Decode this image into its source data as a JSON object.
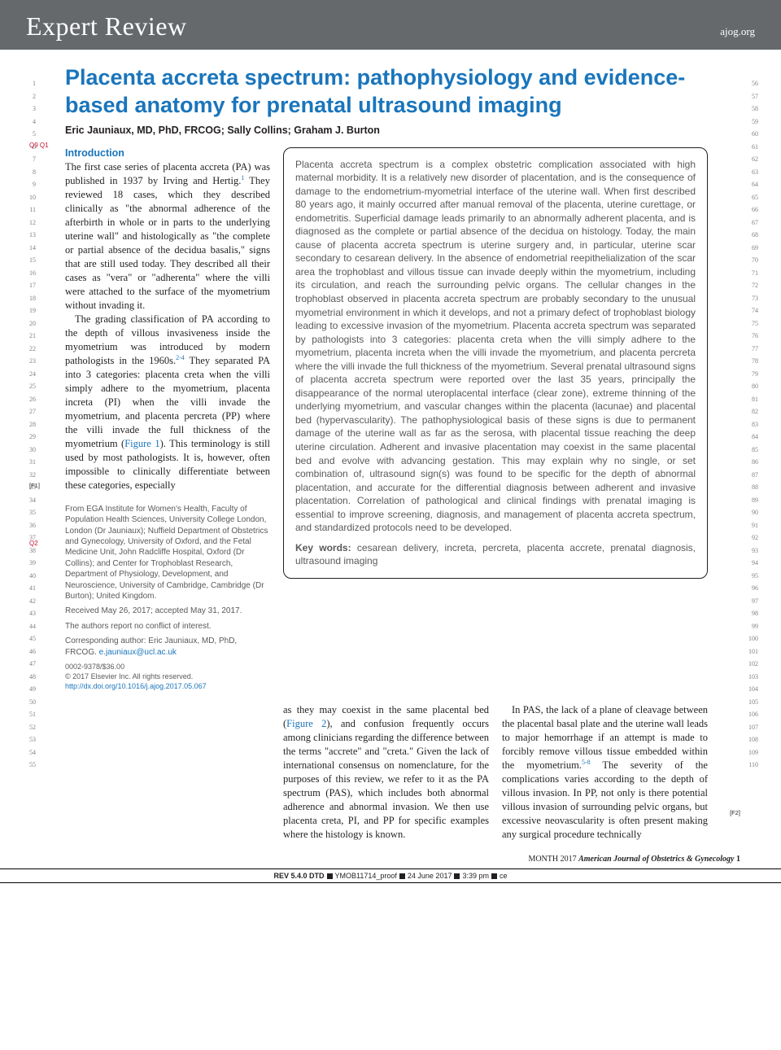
{
  "header": {
    "section": "Expert Review",
    "site": "ajog.org"
  },
  "title": "Placenta accreta spectrum: pathophysiology and evidence-based anatomy for prenatal ultrasound imaging",
  "queryMarks": "Q9 Q1",
  "authors": "Eric Jauniaux, MD, PhD, FRCOG; Sally Collins; Graham J. Burton",
  "intro": {
    "heading": "Introduction",
    "p1a": "The first case series of placenta accreta (PA) was published in 1937 by Irving and Hertig.",
    "p1sup": "1",
    "p1b": " They reviewed 18 cases, which they described clinically as \"the abnormal adherence of the afterbirth in whole or in parts to the underlying uterine wall\" and histologically as \"the complete or partial absence of the decidua basalis,\" signs that are still used today. They described all their cases as \"vera\" or \"adherenta\" where the villi were attached to the surface of the myometrium without invading it.",
    "p2a": "The grading classification of PA according to the depth of villous invasiveness inside the myometrium was introduced by modern pathologists in the 1960s.",
    "p2sup": "2-4",
    "p2b": " They separated PA into 3 categories: placenta creta when the villi simply adhere to the myometrium, placenta increta (PI) when the villi invade the myometrium, and placenta percreta (PP) where the villi invade the full thickness of the myometrium (",
    "p2fig": "Figure 1",
    "p2c": "). This terminology is still used by most pathologists. It is, however, often impossible to clinically differentiate between these categories, especially"
  },
  "markers": {
    "f1": "[F1]",
    "q2": "Q2",
    "f2": "[F2]"
  },
  "affil": {
    "from": "From EGA Institute for Women's Health, Faculty of Population Health Sciences, University College London, London (Dr Jauniaux); Nuffield Department of Obstetrics and Gynecology, University of Oxford, and the Fetal Medicine Unit, John Radcliffe Hospital, Oxford (Dr Collins); and Center for Trophoblast Research, Department of Physiology, Development, and Neuroscience, University of Cambridge, Cambridge (Dr Burton); United Kingdom.",
    "received": "Received May 26, 2017; accepted May 31, 2017.",
    "conflict": "The authors report no conflict of interest.",
    "corresponding": "Corresponding author: Eric Jauniaux, MD, PhD, FRCOG. ",
    "email": "e.jauniaux@ucl.ac.uk",
    "issn": "0002-9378/$36.00",
    "copyright": "© 2017 Elsevier Inc. All rights reserved.",
    "doi": "http://dx.doi.org/10.1016/j.ajog.2017.05.067"
  },
  "abstract": {
    "body": "Placenta accreta spectrum is a complex obstetric complication associated with high maternal morbidity. It is a relatively new disorder of placentation, and is the consequence of damage to the endometrium-myometrial interface of the uterine wall. When first described 80 years ago, it mainly occurred after manual removal of the placenta, uterine curettage, or endometritis. Superficial damage leads primarily to an abnormally adherent placenta, and is diagnosed as the complete or partial absence of the decidua on histology. Today, the main cause of placenta accreta spectrum is uterine surgery and, in particular, uterine scar secondary to cesarean delivery. In the absence of endometrial reepithelialization of the scar area the trophoblast and villous tissue can invade deeply within the myometrium, including its circulation, and reach the surrounding pelvic organs. The cellular changes in the trophoblast observed in placenta accreta spectrum are probably secondary to the unusual myometrial environment in which it develops, and not a primary defect of trophoblast biology leading to excessive invasion of the myometrium. Placenta accreta spectrum was separated by pathologists into 3 categories: placenta creta when the villi simply adhere to the myometrium, placenta increta when the villi invade the myometrium, and placenta percreta where the villi invade the full thickness of the myometrium. Several prenatal ultrasound signs of placenta accreta spectrum were reported over the last 35 years, principally the disappearance of the normal uteroplacental interface (clear zone), extreme thinning of the underlying myometrium, and vascular changes within the placenta (lacunae) and placental bed (hypervascularity). The pathophysiological basis of these signs is due to permanent damage of the uterine wall as far as the serosa, with placental tissue reaching the deep uterine circulation. Adherent and invasive placentation may coexist in the same placental bed and evolve with advancing gestation. This may explain why no single, or set combination of, ultrasound sign(s) was found to be specific for the depth of abnormal placentation, and accurate for the differential diagnosis between adherent and invasive placentation. Correlation of pathological and clinical findings with prenatal imaging is essential to improve screening, diagnosis, and management of placenta accreta spectrum, and standardized protocols need to be developed.",
    "keywordsLabel": "Key words: ",
    "keywords": "cesarean delivery, increta, percreta, placenta accrete, prenatal diagnosis, ultrasound imaging"
  },
  "lower": {
    "col1a": "as they may coexist in the same placental bed (",
    "col1fig": "Figure 2",
    "col1b": "), and confusion frequently occurs among clinicians regarding the difference between the terms \"accrete\" and \"creta.\" Given the lack of international consensus on nomenclature, for the purposes of this review, we refer to it as the PA spectrum (PAS), which includes both abnormal adherence and abnormal invasion. We then use placenta creta, PI, and PP for specific examples where the histology is known.",
    "col2a": "In PAS, the lack of a plane of cleavage between the placental basal plate and the uterine wall leads to major hemorrhage if an attempt is made to forcibly remove villous tissue embedded within the myometrium.",
    "col2sup": "5-8",
    "col2b": " The severity of the complications varies according to the depth of villous invasion. In PP, not only is there potential villous invasion of surrounding pelvic organs, but excessive neovascularity is often present making any surgical procedure technically"
  },
  "footer": {
    "month": "MONTH 2017 ",
    "journal": "American Journal of Obstetrics & Gynecology",
    "page": " 1"
  },
  "bottom": {
    "rev": "REV 5.4.0 DTD",
    "proof": "YMOB11714_proof",
    "date": "24 June 2017",
    "time": "3:39 pm",
    "ce": "ce"
  },
  "lineNumbers": {
    "leftStart": 1,
    "leftEnd": 55,
    "rightStart": 56,
    "rightEnd": 110
  }
}
